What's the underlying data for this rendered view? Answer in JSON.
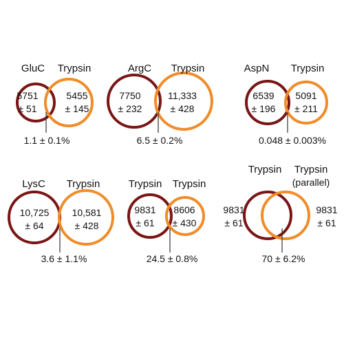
{
  "colors": {
    "dark_circle": "#7a1515",
    "light_circle": "#f08c2a",
    "text": "#111111",
    "leader_line": "#333333"
  },
  "panels": [
    {
      "left_label": "GluC",
      "right_label": "Trypsin",
      "right_sublabel": "",
      "left_count": [
        "5751",
        "± 51"
      ],
      "right_count": [
        "5455",
        "± 145"
      ],
      "overlap": "1.1 ± 0.1%"
    },
    {
      "left_label": "ArgC",
      "right_label": "Trypsin",
      "right_sublabel": "",
      "left_count": [
        "7750",
        "± 232"
      ],
      "right_count": [
        "11,333",
        "± 428"
      ],
      "overlap": "6.5 ± 0.2%"
    },
    {
      "left_label": "AspN",
      "right_label": "Trypsin",
      "right_sublabel": "",
      "left_count": [
        "6539",
        "± 196"
      ],
      "right_count": [
        "5091",
        "± 211"
      ],
      "overlap": "0.048 ± 0.003%"
    },
    {
      "left_label": "LysC",
      "right_label": "Trypsin",
      "right_sublabel": "",
      "left_count": [
        "10,725",
        "± 64"
      ],
      "right_count": [
        "10,581",
        "± 428"
      ],
      "overlap": "3.6 ± 1.1%"
    },
    {
      "left_label": "Trypsin",
      "right_label": "Trypsin",
      "right_sublabel": "",
      "left_count": [
        "9831",
        "± 61"
      ],
      "right_count": [
        "8606",
        "± 430"
      ],
      "overlap": "24.5 ± 0.8%"
    },
    {
      "left_label": "Trypsin",
      "right_label": "Trypsin",
      "right_sublabel": "(parallel)",
      "left_count": [
        "9831",
        "± 61"
      ],
      "right_count": [
        "9831",
        "± 61"
      ],
      "overlap": "70 ± 6.2%"
    }
  ]
}
